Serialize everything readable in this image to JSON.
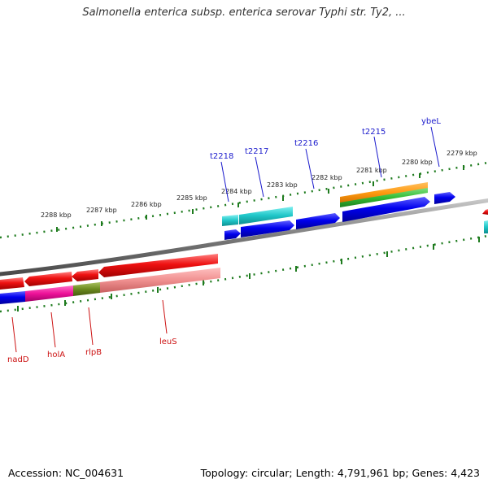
{
  "title": "Salmonella enterica subsp. enterica serovar Typhi str. Ty2, ...",
  "footer": {
    "accession": "Accession: NC_004631",
    "summary": "Topology: circular; Length: 4,791,961 bp; Genes: 4,423"
  },
  "scale_labels": [
    "2288 kbp",
    "2287 kbp",
    "2286 kbp",
    "2285 kbp",
    "2284 kbp",
    "2283 kbp",
    "2282 kbp",
    "2281 kbp",
    "2280 kbp",
    "2279 kbp"
  ],
  "genes_upper": [
    "t2218",
    "t2217",
    "t2216",
    "t2215",
    "ybeL"
  ],
  "genes_lower": [
    "nadD",
    "holA",
    "rlpB",
    "leuS"
  ],
  "colors": {
    "backbone": "#7a7a7a",
    "ticks": "#1e7b1e",
    "forward_cds": "#ee1111",
    "reverse_cds": "#0000ee",
    "upper_label": "#1a1acc",
    "lower_label": "#cc1111",
    "cyan": "#20c4c8",
    "orange": "#ff9a10",
    "green": "#33bb33",
    "magenta": "#ee1199",
    "olive": "#6b8a1e",
    "pink": "#f09090"
  }
}
